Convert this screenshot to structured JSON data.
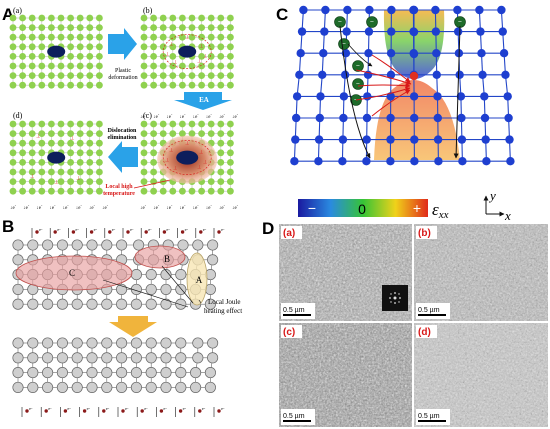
{
  "panels": {
    "A": {
      "label": "A",
      "subs": [
        "(a)",
        "(b)",
        "(c)",
        "(d)"
      ],
      "arrow_plastic": [
        "Plastic",
        "deformation"
      ],
      "arrow_ea": "EA",
      "arrow_disloc": [
        "Dislocation",
        "elimination"
      ],
      "local_high": [
        "Local high",
        "temperature"
      ],
      "electron": "e",
      "electron_sup": "-"
    },
    "B": {
      "label": "B",
      "zones": [
        "C",
        "B",
        "A"
      ],
      "joule": [
        "Local Joule",
        "heating effect"
      ],
      "electron": "e",
      "electron_sup": "-"
    },
    "C": {
      "label": "C",
      "colorbar_minus": "−",
      "colorbar_zero": "0",
      "colorbar_plus": "+",
      "strain": "ε",
      "strain_sub": "xx",
      "axis_x": "x",
      "axis_y": "y",
      "electron": "e"
    },
    "D": {
      "label": "D",
      "subs": [
        "(a)",
        "(b)",
        "(c)",
        "(d)"
      ],
      "scale": "0.5 µm"
    }
  }
}
